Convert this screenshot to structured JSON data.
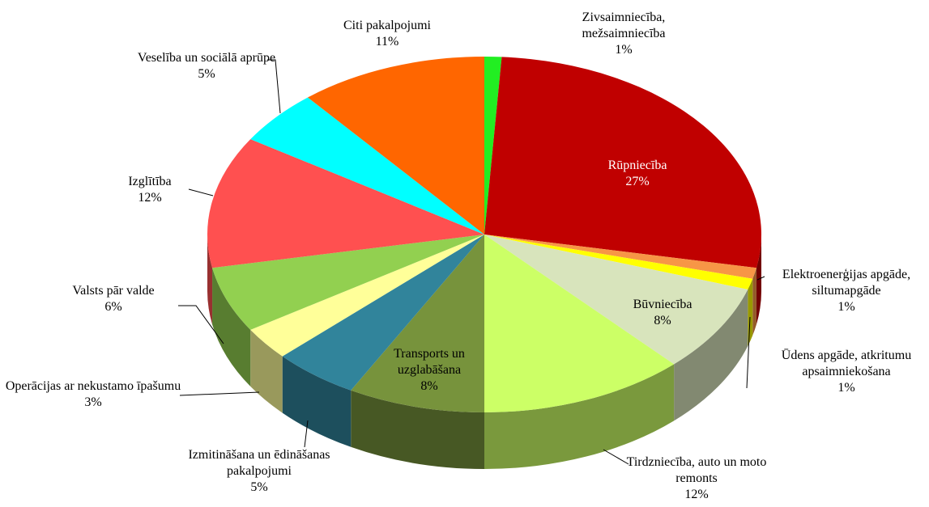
{
  "chart_data": {
    "type": "pie3d",
    "categories": [
      "Zivsaimniecība, mežsaimniecība",
      "Rūpniecība",
      "Elektroenerģijas apgāde, siltumapgāde",
      "Ūdens apgāde, atkritumu apsaimniekošana",
      "Būvniecība",
      "Tirdzniecība, auto un moto remonts",
      "Transports un uzglabāšana",
      "Izmitināšana un ēdināšanas pakalpojumi",
      "Operācijas ar nekustamo īpašumu",
      "Valsts pār valde",
      "Izglītība",
      "Veselība un sociālā aprūpe",
      "Citi pakalpojumi"
    ],
    "values": [
      1,
      27,
      1,
      1,
      8,
      12,
      8,
      5,
      3,
      6,
      12,
      5,
      11
    ],
    "value_labels": [
      "1%",
      "27%",
      "1%",
      "1%",
      "8%",
      "12%",
      "8%",
      "5%",
      "3%",
      "6%",
      "12%",
      "5%",
      "11%"
    ],
    "colors": [
      "#22ee22",
      "#c00000",
      "#f79646",
      "#ffff00",
      "#d8e4bc",
      "#ccff66",
      "#77933c",
      "#31849b",
      "#ffff99",
      "#92d050",
      "#ff5050",
      "#00ffff",
      "#ff6600"
    ]
  }
}
